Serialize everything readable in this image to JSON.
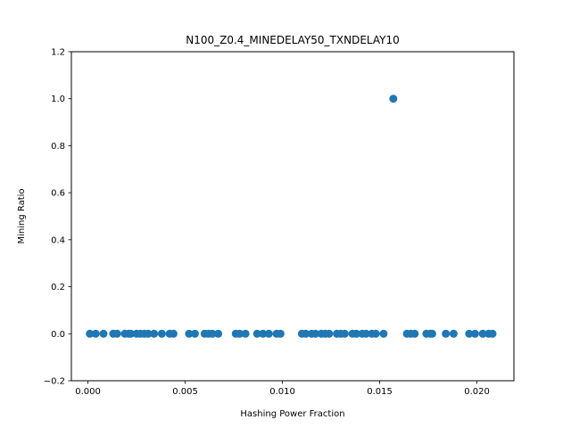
{
  "chart_data": {
    "type": "scatter",
    "title": "N100_Z0.4_MINEDELAY50_TXNDELAY10",
    "xlabel": "Hashing Power Fraction",
    "ylabel": "Mining Ratio",
    "xlim": [
      -0.00085,
      0.0219
    ],
    "ylim": [
      -0.2,
      1.2
    ],
    "x_ticks": [
      0.0,
      0.005,
      0.01,
      0.015,
      0.02
    ],
    "x_tick_labels": [
      "0.000",
      "0.005",
      "0.010",
      "0.015",
      "0.020"
    ],
    "y_ticks": [
      -0.2,
      0.0,
      0.2,
      0.4,
      0.6,
      0.8,
      1.0,
      1.2
    ],
    "y_tick_labels": [
      "−0.2",
      "0.0",
      "0.2",
      "0.4",
      "0.6",
      "0.8",
      "1.0",
      "1.2"
    ],
    "grid": false,
    "marker_color": "#1f77b4",
    "points": [
      {
        "x": 0.0001,
        "y": 0
      },
      {
        "x": 0.0004,
        "y": 0
      },
      {
        "x": 0.0008,
        "y": 0
      },
      {
        "x": 0.0013,
        "y": 0
      },
      {
        "x": 0.0015,
        "y": 0
      },
      {
        "x": 0.0019,
        "y": 0
      },
      {
        "x": 0.0021,
        "y": 0
      },
      {
        "x": 0.0022,
        "y": 0
      },
      {
        "x": 0.0025,
        "y": 0
      },
      {
        "x": 0.0027,
        "y": 0
      },
      {
        "x": 0.0029,
        "y": 0
      },
      {
        "x": 0.0031,
        "y": 0
      },
      {
        "x": 0.0034,
        "y": 0
      },
      {
        "x": 0.0038,
        "y": 0
      },
      {
        "x": 0.0042,
        "y": 0
      },
      {
        "x": 0.0044,
        "y": 0
      },
      {
        "x": 0.0052,
        "y": 0
      },
      {
        "x": 0.0055,
        "y": 0
      },
      {
        "x": 0.006,
        "y": 0
      },
      {
        "x": 0.0062,
        "y": 0
      },
      {
        "x": 0.0064,
        "y": 0
      },
      {
        "x": 0.0067,
        "y": 0
      },
      {
        "x": 0.0076,
        "y": 0
      },
      {
        "x": 0.0078,
        "y": 0
      },
      {
        "x": 0.0081,
        "y": 0
      },
      {
        "x": 0.0087,
        "y": 0
      },
      {
        "x": 0.009,
        "y": 0
      },
      {
        "x": 0.0093,
        "y": 0
      },
      {
        "x": 0.0097,
        "y": 0
      },
      {
        "x": 0.0099,
        "y": 0
      },
      {
        "x": 0.011,
        "y": 0
      },
      {
        "x": 0.0112,
        "y": 0
      },
      {
        "x": 0.0115,
        "y": 0
      },
      {
        "x": 0.0117,
        "y": 0
      },
      {
        "x": 0.012,
        "y": 0
      },
      {
        "x": 0.0122,
        "y": 0
      },
      {
        "x": 0.0124,
        "y": 0
      },
      {
        "x": 0.0128,
        "y": 0
      },
      {
        "x": 0.013,
        "y": 0
      },
      {
        "x": 0.0132,
        "y": 0
      },
      {
        "x": 0.0136,
        "y": 0
      },
      {
        "x": 0.0138,
        "y": 0
      },
      {
        "x": 0.0141,
        "y": 0
      },
      {
        "x": 0.0143,
        "y": 0
      },
      {
        "x": 0.0146,
        "y": 0
      },
      {
        "x": 0.0148,
        "y": 0
      },
      {
        "x": 0.0152,
        "y": 0
      },
      {
        "x": 0.0157,
        "y": 1.0
      },
      {
        "x": 0.0164,
        "y": 0
      },
      {
        "x": 0.0166,
        "y": 0
      },
      {
        "x": 0.0168,
        "y": 0
      },
      {
        "x": 0.0174,
        "y": 0
      },
      {
        "x": 0.0176,
        "y": 0
      },
      {
        "x": 0.0177,
        "y": 0
      },
      {
        "x": 0.0184,
        "y": 0
      },
      {
        "x": 0.0188,
        "y": 0
      },
      {
        "x": 0.0196,
        "y": 0
      },
      {
        "x": 0.0199,
        "y": 0
      },
      {
        "x": 0.0203,
        "y": 0
      },
      {
        "x": 0.0206,
        "y": 0
      },
      {
        "x": 0.0208,
        "y": 0
      }
    ]
  }
}
